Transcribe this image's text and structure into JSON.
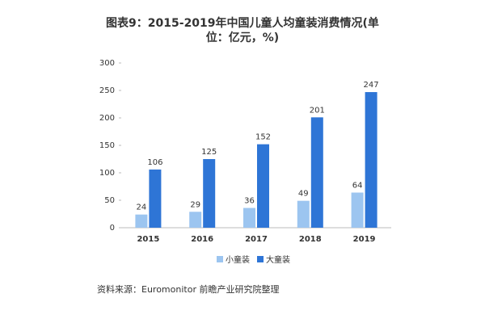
{
  "chart_data": {
    "type": "bar",
    "title": "图表9：2015-2019年中国儿童人均童装消费情况(单位：亿元，%)",
    "categories": [
      "2015",
      "2016",
      "2017",
      "2018",
      "2019"
    ],
    "series": [
      {
        "name": "小童装",
        "color": "#9cc5f0",
        "values": [
          24,
          29,
          36,
          49,
          64
        ]
      },
      {
        "name": "大童装",
        "color": "#2e75d6",
        "values": [
          106,
          125,
          152,
          201,
          247
        ]
      }
    ],
    "ylim": [
      0,
      300
    ],
    "yticks": [
      0,
      50,
      100,
      150,
      200,
      250,
      300
    ],
    "source": "资料来源：Euromonitor 前瞻产业研究院整理"
  }
}
